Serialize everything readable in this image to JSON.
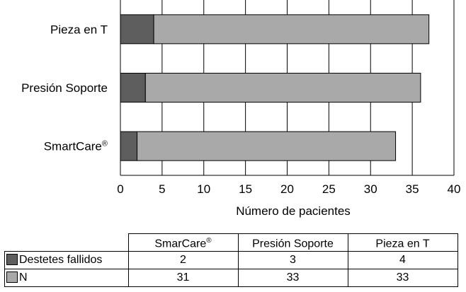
{
  "colors": {
    "failed": "#5e5e5e",
    "n": "#a9a9a9",
    "grid": "#000000"
  },
  "chart_data": {
    "type": "bar",
    "orientation": "horizontal",
    "stacked": true,
    "categories": [
      "Pieza en T",
      "Presión Soporte",
      "SmartCare"
    ],
    "category_superscripts": [
      "",
      "",
      "®"
    ],
    "series": [
      {
        "name": "Destetes fallidos",
        "values": [
          4,
          3,
          2
        ]
      },
      {
        "name": "N",
        "values": [
          33,
          33,
          31
        ]
      }
    ],
    "xlabel": "Número de pacientes",
    "xlim": [
      0,
      40
    ],
    "xticks": [
      0,
      5,
      10,
      15,
      20,
      25,
      30,
      35,
      40
    ],
    "grid": "vertical"
  },
  "table": {
    "headers": [
      {
        "text": "SmarCare",
        "sup": "®"
      },
      {
        "text": "Presión Soporte",
        "sup": ""
      },
      {
        "text": "Pieza en T",
        "sup": ""
      }
    ],
    "rows": [
      {
        "label": "Destetes fallidos",
        "values": [
          "2",
          "3",
          "4"
        ]
      },
      {
        "label": "N",
        "values": [
          "31",
          "33",
          "33"
        ]
      }
    ]
  }
}
